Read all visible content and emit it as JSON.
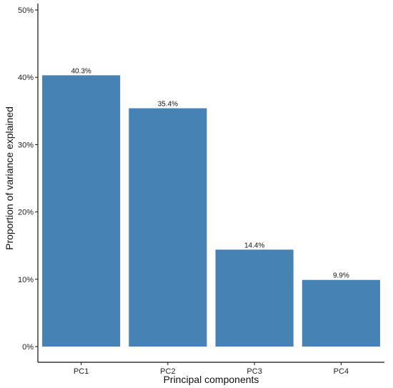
{
  "chart_data": {
    "type": "bar",
    "categories": [
      "PC1",
      "PC2",
      "PC3",
      "PC4"
    ],
    "values": [
      40.3,
      35.4,
      14.4,
      9.9
    ],
    "data_labels": [
      "40.3%",
      "35.4%",
      "14.4%",
      "9.9%"
    ],
    "xlabel": "Principal components",
    "ylabel": "Proportion of variance explained",
    "ylim": [
      0,
      50
    ],
    "y_ticks": [
      0,
      10,
      20,
      30,
      40,
      50
    ],
    "y_tick_labels": [
      "0%",
      "10%",
      "20%",
      "30%",
      "40%",
      "50%"
    ],
    "grid": false,
    "bar_color": "#4682B4"
  }
}
